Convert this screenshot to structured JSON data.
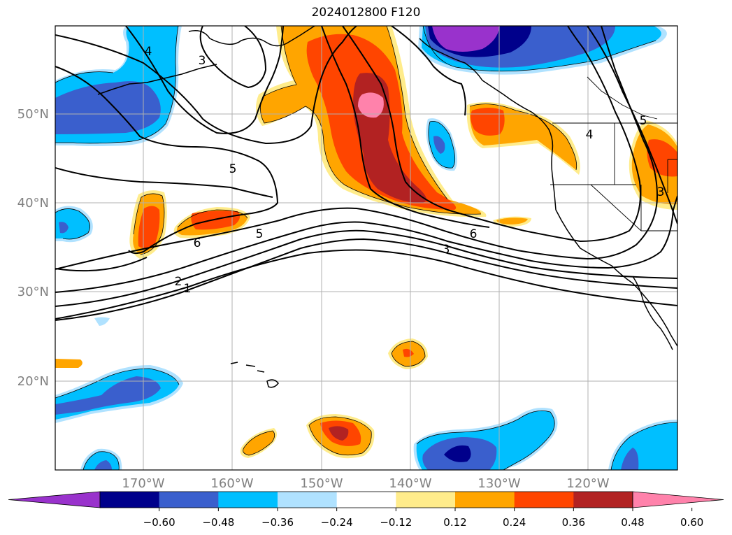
{
  "title": "2024012800 F120",
  "lat_labels": [
    {
      "text": "50°N",
      "value": 50
    },
    {
      "text": "40°N",
      "value": 40
    },
    {
      "text": "30°N",
      "value": 30
    },
    {
      "text": "20°N",
      "value": 20
    }
  ],
  "lon_labels": [
    {
      "text": "170°W",
      "value": -170
    },
    {
      "text": "160°W",
      "value": -160
    },
    {
      "text": "150°W",
      "value": -150
    },
    {
      "text": "140°W",
      "value": -140
    },
    {
      "text": "130°W",
      "value": -130
    },
    {
      "text": "120°W",
      "value": -120
    }
  ],
  "colorbar": {
    "ticks": [
      "−0.60",
      "−0.48",
      "−0.36",
      "−0.24",
      "−0.12",
      "0.12",
      "0.24",
      "0.36",
      "0.48",
      "0.60"
    ],
    "colors": [
      "#9932cc",
      "#00008b",
      "#3a5fcd",
      "#00bfff",
      "#b0e2ff",
      "#ffffff",
      "#ffec8b",
      "#ffa500",
      "#ff4500",
      "#b22222",
      "#ff82ab"
    ]
  },
  "contour_labels": [
    "4",
    "3",
    "5",
    "6",
    "5",
    "2",
    "1",
    "3",
    "6",
    "4",
    "5",
    "3"
  ],
  "colors": {
    "gridline": "#b0b0b0",
    "label_gray": "#808080",
    "coast": "#000000"
  }
}
